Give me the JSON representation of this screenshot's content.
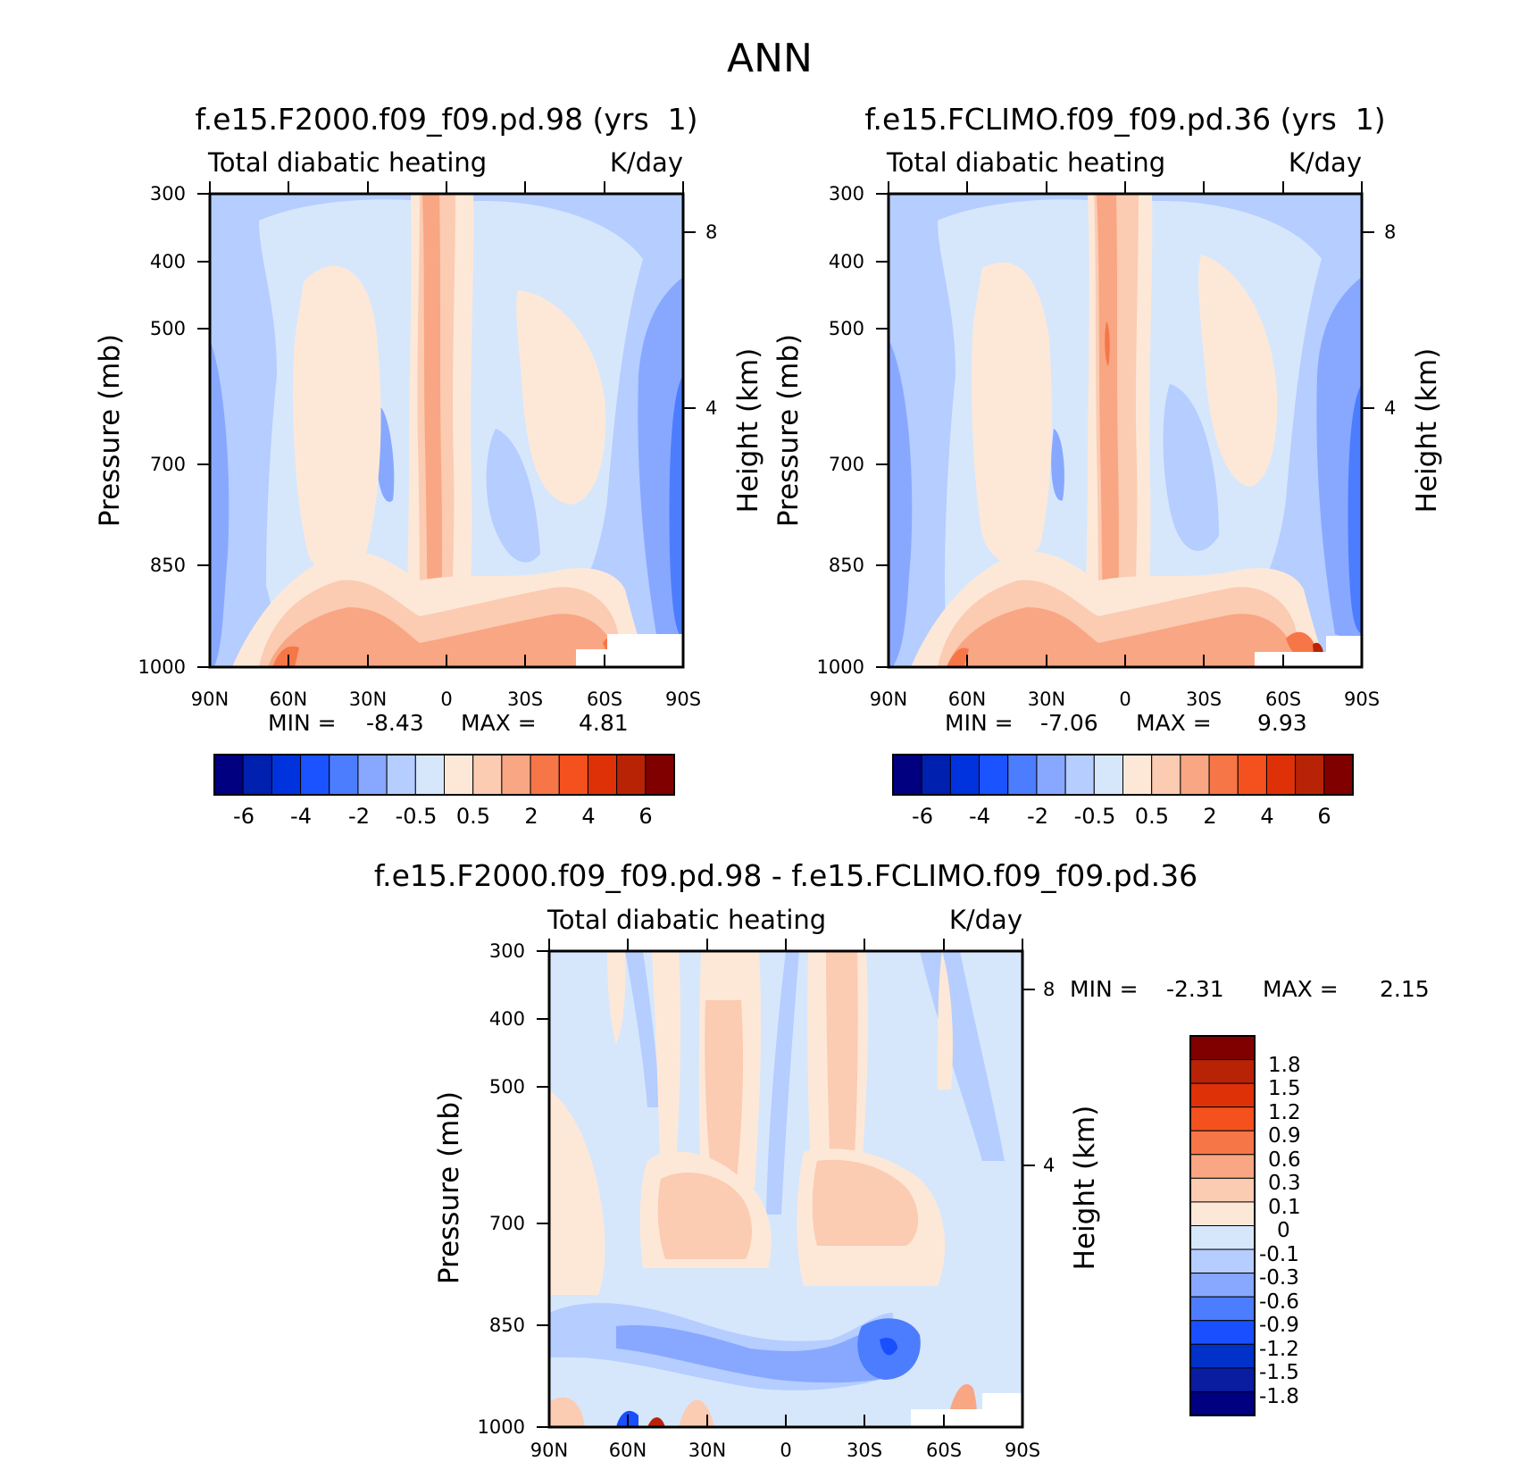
{
  "page_title": "ANN",
  "colors": {
    "fullfield": [
      "#000080",
      "#0020b0",
      "#0033dd",
      "#1a53ff",
      "#4d7dff",
      "#88a8ff",
      "#b5cdff",
      "#d6e7fc",
      "#fde8d8",
      "#fbcbb2",
      "#f8a683",
      "#f67648",
      "#f4511e",
      "#de3108",
      "#b82306",
      "#800000"
    ],
    "diff": [
      "#000080",
      "#0a1ca0",
      "#0031c8",
      "#1a4fff",
      "#4d7dff",
      "#88a8ff",
      "#b5cdff",
      "#d6e7fc",
      "#fde8d8",
      "#fbcbb2",
      "#f8a683",
      "#f67648",
      "#f4511e",
      "#de3108",
      "#b82306",
      "#800000"
    ]
  },
  "chart_data": [
    {
      "type": "heatmap",
      "id": "panel-f2000",
      "title": "f.e15.F2000.f09_f09.pd.98 (yrs  1)",
      "variable": "Total diabatic heating",
      "units": "K/day",
      "ylabel": "Pressure (mb)",
      "y2label": "Height (km)",
      "x_ticks": [
        "90N",
        "60N",
        "30N",
        "0",
        "30S",
        "60S",
        "90S"
      ],
      "y_ticks": [
        300,
        400,
        500,
        700,
        850,
        1000
      ],
      "y2_ticks": [
        8,
        4
      ],
      "ylim": [
        1000,
        300
      ],
      "min_label": "MIN =",
      "min_value": "-8.43",
      "max_label": "MAX =",
      "max_value": "4.81",
      "colorbar_labels": [
        "-6",
        "-4",
        "-2",
        "-0.5",
        "0.5",
        "2",
        "4",
        "6"
      ]
    },
    {
      "type": "heatmap",
      "id": "panel-fclimo",
      "title": "f.e15.FCLIMO.f09_f09.pd.36 (yrs  1)",
      "variable": "Total diabatic heating",
      "units": "K/day",
      "ylabel": "Pressure (mb)",
      "y2label": "Height (km)",
      "x_ticks": [
        "90N",
        "60N",
        "30N",
        "0",
        "30S",
        "60S",
        "90S"
      ],
      "y_ticks": [
        300,
        400,
        500,
        700,
        850,
        1000
      ],
      "y2_ticks": [
        8,
        4
      ],
      "ylim": [
        1000,
        300
      ],
      "min_label": "MIN =",
      "min_value": "-7.06",
      "max_label": "MAX =",
      "max_value": "9.93",
      "colorbar_labels": [
        "-6",
        "-4",
        "-2",
        "-0.5",
        "0.5",
        "2",
        "4",
        "6"
      ]
    },
    {
      "type": "heatmap",
      "id": "panel-diff",
      "title": "f.e15.F2000.f09_f09.pd.98 - f.e15.FCLIMO.f09_f09.pd.36",
      "variable": "Total diabatic heating",
      "units": "K/day",
      "ylabel": "Pressure (mb)",
      "y2label": "Height (km)",
      "x_ticks": [
        "90N",
        "60N",
        "30N",
        "0",
        "30S",
        "60S",
        "90S"
      ],
      "y_ticks": [
        300,
        400,
        500,
        700,
        850,
        1000
      ],
      "y2_ticks": [
        8,
        4
      ],
      "ylim": [
        1000,
        300
      ],
      "min_label": "MIN =",
      "min_value": "-2.31",
      "max_label": "MAX =",
      "max_value": "2.15",
      "colorbar_labels": [
        "1.8",
        "1.5",
        "1.2",
        "0.9",
        "0.6",
        "0.3",
        "0.1",
        "0",
        "-0.1",
        "-0.3",
        "-0.6",
        "-0.9",
        "-1.2",
        "-1.5",
        "-1.8"
      ]
    }
  ]
}
